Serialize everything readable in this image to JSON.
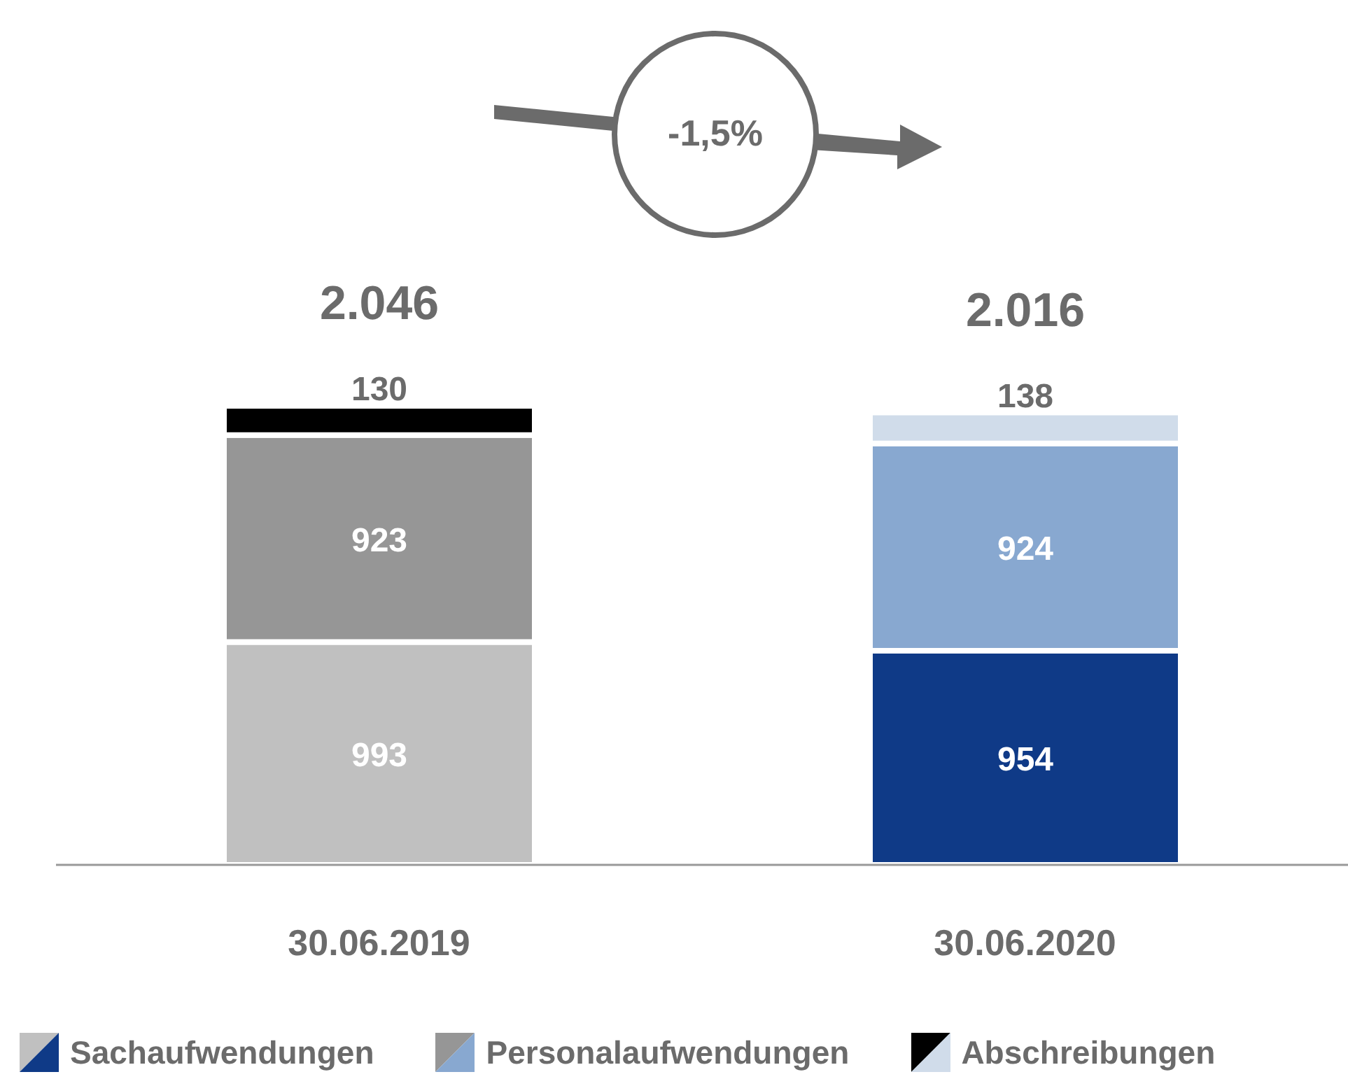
{
  "chart_data": {
    "type": "bar",
    "stacked": true,
    "categories": [
      "30.06.2019",
      "30.06.2020"
    ],
    "series": [
      {
        "name": "Sachaufwendungen",
        "colors": [
          "#c0c0c0",
          "#0f3a87"
        ],
        "values": [
          993,
          954
        ]
      },
      {
        "name": "Personalaufwendungen",
        "colors": [
          "#969696",
          "#88a8d0"
        ],
        "values": [
          923,
          924
        ]
      },
      {
        "name": "Abschreibungen",
        "colors": [
          "#000000",
          "#d0dcea"
        ],
        "values": [
          130,
          138
        ]
      }
    ],
    "data_labels": true,
    "totals": [
      "2.046",
      "2.016"
    ],
    "annotations": [
      "-1,5%"
    ],
    "legend": "bottom"
  }
}
